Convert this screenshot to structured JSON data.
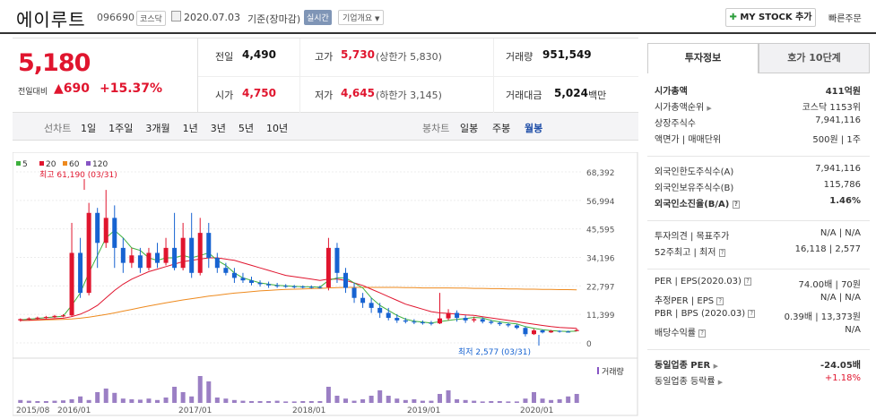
{
  "header": {
    "stock_name": "에이루트",
    "stock_code": "096690",
    "market_badge": "코스닥",
    "date": "2020.07.03",
    "date_basis": "기준(장마감)",
    "realtime_badge": "실시간",
    "company_info_label": "기업개요",
    "mystock_button": "MY STOCK 추가",
    "quick_order": "빠른주문"
  },
  "price": {
    "current": "5,180",
    "change_label": "전일대비",
    "change_value": "690",
    "change_rate": "+15.37%"
  },
  "summary": {
    "prev_close_label": "전일",
    "prev_close": "4,490",
    "high_label": "고가",
    "high": "5,730",
    "upper_limit": "(상한가 5,830)",
    "volume_label": "거래량",
    "volume": "951,549",
    "open_label": "시가",
    "open": "4,750",
    "low_label": "저가",
    "low": "4,645",
    "lower_limit": "(하한가 3,145)",
    "amount_label": "거래대금",
    "amount": "5,024",
    "amount_unit": "백만"
  },
  "periods": {
    "label": "선차트",
    "items": [
      "1일",
      "1주일",
      "3개월",
      "1년",
      "3년",
      "5년",
      "10년"
    ]
  },
  "candle_periods": {
    "label": "봉차트",
    "items": [
      "일봉",
      "주봉",
      "월봉"
    ],
    "active": "월봉"
  },
  "chart": {
    "legend": [
      {
        "name": "5",
        "color": "#3db03d"
      },
      {
        "name": "20",
        "color": "#e0152e"
      },
      {
        "name": "60",
        "color": "#ee8a1e"
      },
      {
        "name": "120",
        "color": "#8755c4"
      }
    ],
    "max_label": "최고 61,190 (03/31)",
    "min_label": "최저 2,577 (03/31)",
    "y_ticks": [
      "68,392",
      "56,994",
      "45,595",
      "34,196",
      "22,797",
      "11,399",
      "0"
    ],
    "x_ticks": [
      "2015/08",
      "2016/01",
      "2017/01",
      "2018/01",
      "2019/01",
      "2020/01"
    ],
    "volume_label": "거래량"
  },
  "chart_data": {
    "type": "candlestick",
    "y_ticks": [
      68392,
      56994,
      45595,
      34196,
      22797,
      11399,
      0
    ],
    "x_ticks": [
      "2015/08",
      "2016/01",
      "2017/01",
      "2018/01",
      "2019/01",
      "2020/01"
    ],
    "ylim": [
      0,
      68392
    ],
    "series": [
      {
        "name": "5",
        "color": "#3db03d"
      },
      {
        "name": "20",
        "color": "#e0152e"
      },
      {
        "name": "60",
        "color": "#ee8a1e"
      },
      {
        "name": "120",
        "color": "#8755c4"
      }
    ],
    "annotations": [
      "최고 61,190 (03/31)",
      "최저 2,577 (03/31)"
    ],
    "candles": [
      [
        9000,
        9500,
        8500,
        9800
      ],
      [
        9400,
        9800,
        9000,
        10200
      ],
      [
        9700,
        10100,
        9300,
        10500
      ],
      [
        10000,
        10400,
        9700,
        10800
      ],
      [
        10300,
        10800,
        10000,
        11200
      ],
      [
        10600,
        11000,
        10300,
        11500
      ],
      [
        11000,
        36000,
        10500,
        48000
      ],
      [
        36000,
        20000,
        18000,
        42000
      ],
      [
        20000,
        52000,
        19000,
        56000
      ],
      [
        52000,
        40000,
        30000,
        54000
      ],
      [
        40000,
        50000,
        38000,
        61190
      ],
      [
        50000,
        38000,
        30000,
        55000
      ],
      [
        38000,
        32000,
        28000,
        42000
      ],
      [
        32000,
        35000,
        30000,
        38000
      ],
      [
        35000,
        30000,
        28000,
        38000
      ],
      [
        30000,
        36000,
        29000,
        38000
      ],
      [
        36000,
        32000,
        30000,
        40000
      ],
      [
        32000,
        38000,
        31000,
        42000
      ],
      [
        38000,
        30000,
        29000,
        52000
      ],
      [
        30000,
        42000,
        29000,
        48000
      ],
      [
        42000,
        28000,
        26000,
        52000
      ],
      [
        28000,
        44000,
        27000,
        50000
      ],
      [
        44000,
        34000,
        30000,
        48000
      ],
      [
        34000,
        30000,
        28000,
        36000
      ],
      [
        30000,
        28000,
        27000,
        32000
      ],
      [
        28000,
        26000,
        24000,
        30000
      ],
      [
        26000,
        25000,
        24000,
        28000
      ],
      [
        25000,
        24000,
        23000,
        26500
      ],
      [
        24000,
        23500,
        22500,
        25000
      ],
      [
        23500,
        23000,
        22000,
        24500
      ],
      [
        23000,
        22800,
        22000,
        24000
      ],
      [
        22800,
        22600,
        22000,
        23500
      ],
      [
        22600,
        22500,
        21800,
        23200
      ],
      [
        22500,
        22400,
        21800,
        23000
      ],
      [
        22400,
        22300,
        21700,
        23000
      ],
      [
        22300,
        22200,
        21700,
        22900
      ],
      [
        22200,
        38000,
        21000,
        42000
      ],
      [
        38000,
        28000,
        24000,
        40000
      ],
      [
        28000,
        22000,
        20000,
        30000
      ],
      [
        22000,
        18000,
        16000,
        24000
      ],
      [
        18000,
        16000,
        14000,
        20000
      ],
      [
        16000,
        14000,
        12000,
        18000
      ],
      [
        14000,
        12000,
        10000,
        16000
      ],
      [
        12000,
        10000,
        9000,
        14000
      ],
      [
        10000,
        9000,
        8000,
        11500
      ],
      [
        9000,
        8500,
        7800,
        10000
      ],
      [
        8500,
        8200,
        7500,
        9500
      ],
      [
        8200,
        8000,
        7300,
        9000
      ],
      [
        8000,
        7800,
        7000,
        8800
      ],
      [
        7800,
        9800,
        7500,
        20000
      ],
      [
        9800,
        12000,
        9000,
        13500
      ],
      [
        12000,
        10000,
        8500,
        13000
      ],
      [
        10000,
        9000,
        8000,
        11000
      ],
      [
        9000,
        9500,
        8200,
        10500
      ],
      [
        9500,
        8500,
        7800,
        10200
      ],
      [
        8500,
        8000,
        7400,
        9200
      ],
      [
        8000,
        7500,
        6800,
        8600
      ],
      [
        7500,
        7000,
        6300,
        8000
      ],
      [
        7000,
        6000,
        5500,
        7500
      ],
      [
        6000,
        3500,
        2577,
        6500
      ],
      [
        3500,
        5000,
        3200,
        5600
      ],
      [
        5000,
        4200,
        3800,
        5400
      ],
      [
        4200,
        4800,
        4000,
        5200
      ],
      [
        4800,
        4500,
        4100,
        5000
      ],
      [
        4500,
        4490,
        4200,
        4900
      ],
      [
        4750,
        5180,
        4645,
        5730
      ]
    ],
    "ma5": [
      9200,
      9500,
      9800,
      10100,
      10400,
      10700,
      15000,
      20000,
      28000,
      35000,
      42000,
      45000,
      42000,
      38000,
      37000,
      34000,
      33000,
      34000,
      34000,
      35000,
      34000,
      35000,
      36000,
      33000,
      31000,
      28000,
      26000,
      25000,
      24000,
      23500,
      23000,
      22800,
      22600,
      22500,
      22400,
      22300,
      25000,
      26000,
      26000,
      24000,
      22000,
      18000,
      15000,
      13000,
      11000,
      9500,
      8700,
      8300,
      8000,
      8500,
      9000,
      9400,
      9700,
      10200,
      10000,
      9000,
      8400,
      8000,
      7600,
      6500,
      5800,
      5300,
      4900,
      4700,
      4600,
      4700
    ],
    "ma20": [
      9000,
      9100,
      9300,
      9500,
      9700,
      9900,
      10500,
      11500,
      13000,
      15000,
      18000,
      21000,
      23500,
      25500,
      27000,
      28500,
      29500,
      30500,
      31500,
      32500,
      33000,
      33500,
      34000,
      34000,
      33500,
      33000,
      32000,
      31000,
      30000,
      29000,
      28000,
      27000,
      26500,
      26000,
      25500,
      25000,
      25500,
      25500,
      25000,
      24000,
      23000,
      21500,
      20000,
      18500,
      17000,
      15500,
      14500,
      13500,
      12500,
      12000,
      11800,
      11500,
      11200,
      11000,
      10500,
      10000,
      9500,
      9000,
      8500,
      8000,
      7500,
      7000,
      6500,
      6200,
      6000,
      5800
    ],
    "ma60": [
      9000,
      9000,
      9100,
      9200,
      9300,
      9400,
      9600,
      9900,
      10300,
      10800,
      11400,
      12000,
      12700,
      13400,
      14100,
      14800,
      15400,
      16000,
      16600,
      17200,
      17700,
      18200,
      18700,
      19100,
      19500,
      19900,
      20200,
      20500,
      20800,
      21000,
      21200,
      21400,
      21500,
      21600,
      21700,
      21800,
      22000,
      22100,
      22200,
      22200,
      22200,
      22200,
      22200,
      22200,
      22200,
      22100,
      22100,
      22000,
      22000,
      22000,
      22000,
      21900,
      21900,
      21800,
      21800,
      21700,
      21700,
      21600,
      21600,
      21500,
      21500,
      21400,
      21400,
      21300,
      21300,
      21200
    ],
    "volumes": [
      0.08,
      0.06,
      0.05,
      0.05,
      0.06,
      0.07,
      0.1,
      0.18,
      0.08,
      0.3,
      0.4,
      0.28,
      0.12,
      0.1,
      0.09,
      0.12,
      0.08,
      0.15,
      0.45,
      0.3,
      0.18,
      0.75,
      0.6,
      0.15,
      0.12,
      0.08,
      0.06,
      0.05,
      0.05,
      0.05,
      0.06,
      0.04,
      0.04,
      0.05,
      0.05,
      0.05,
      0.45,
      0.2,
      0.12,
      0.06,
      0.1,
      0.2,
      0.35,
      0.2,
      0.12,
      0.08,
      0.1,
      0.06,
      0.06,
      0.25,
      0.35,
      0.1,
      0.08,
      0.06,
      0.04,
      0.05,
      0.05,
      0.04,
      0.04,
      0.12,
      0.3,
      0.12,
      0.08,
      0.1,
      0.18,
      0.25
    ]
  },
  "side": {
    "tab_active": "투자정보",
    "tab_other": "호가 10단계",
    "market_cap_label": "시가총액",
    "market_cap": "411억원",
    "market_cap_rank_label": "시가총액순위",
    "market_cap_rank": "코스닥 1153위",
    "shares_label": "상장주식수",
    "shares": "7,941,116",
    "par_label": "액면가 | 매매단위",
    "par": "500원 | 1주",
    "foreign_limit_label": "외국인한도주식수(A)",
    "foreign_limit": "7,941,116",
    "foreign_hold_label": "외국인보유주식수(B)",
    "foreign_hold": "115,786",
    "foreign_ratio_label": "외국인소진율(B/A)",
    "foreign_ratio": "1.46%",
    "opinion_label": "투자의견 | 목표주가",
    "opinion": "N/A | N/A",
    "week52_label": "52주최고 | 최저",
    "week52": "16,118 | 2,577",
    "per_label": "PER | EPS(2020.03)",
    "per": "74.00배 | 70원",
    "est_per_label": "추정PER | EPS",
    "est_per": "N/A | N/A",
    "pbr_label": "PBR | BPS (2020.03)",
    "pbr": "0.39배 | 13,373원",
    "dividend_label": "배당수익률",
    "dividend": "N/A",
    "industry_per_label": "동일업종 PER",
    "industry_per": "-24.05배",
    "industry_rate_label": "동일업종 등락률",
    "industry_rate": "+1.18%"
  }
}
